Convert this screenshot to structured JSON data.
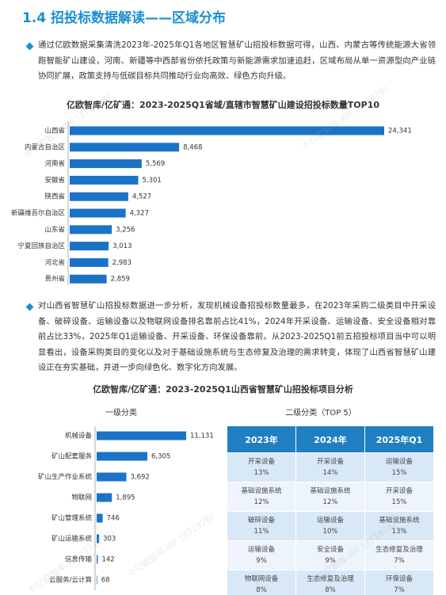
{
  "header": {
    "title": "1.4 招投标数据解读——区域分布"
  },
  "paragraphs": [
    "通过亿欧数据采集清洗2023年-2025年Q1各地区智慧矿山招投标数据可得，山西、内蒙古等传统能源大省领跑智能矿山建设，河南、新疆等中西部省份依托政策与新能源需求加速追赶，区域布局从单一资源型向产业链协同扩展，政策支持与低碳目标共同推动行业向高效、绿色方向升级。",
    "对山西省智慧矿山招投标数据进一步分析，发现机械设备招投标数量最多，在2023年采购二级类目中开采设备、破碎设备、运输设备以及物联网设备排名靠前占比41%，2024年开采设备、运输设备、安全设备相对靠前占比33%，2025年Q1运输设备、开采设备、环保设备靠前。从2023-2025Q1前五招投标项目当中可以明显看出，设备采购类目的变化以及对于基础设施系统与生态修复及治理的需求转变，体现了山西省智慧矿山建设正在夯实基础，并进一步向绿色化、数字化方向发展。"
  ],
  "watermark": "©亿欧智库-WF (371928)",
  "region_chart": {
    "title": "亿欧智库/亿矿通：2023-2025Q1省域/直辖市智慧矿山建设招投标数量TOP10",
    "categories": [
      "山西省",
      "内蒙古自治区",
      "河南省",
      "安徽省",
      "陕西省",
      "新疆维吾尔自治区",
      "山东省",
      "宁夏回族自治区",
      "河北省",
      "贵州省"
    ],
    "values": [
      24341,
      8468,
      5569,
      5301,
      4527,
      4327,
      3256,
      3013,
      2983,
      2859
    ],
    "value_labels": [
      "24,341",
      "8,468",
      "5,569",
      "5,301",
      "4,527",
      "4,327",
      "3,256",
      "3,013",
      "2,983",
      "2,859"
    ],
    "color": "#1a73c6"
  },
  "analysis": {
    "title": "亿欧智库/亿矿通：2023-2025Q1山西省智慧矿山招投标项目分析",
    "primary": {
      "title": "一级分类",
      "categories": [
        "机械设备",
        "矿山配套服务",
        "矿山生产作业系统",
        "物联网",
        "矿山管理系统",
        "矿山运输系统",
        "信息传输",
        "云服务/云计算"
      ],
      "values": [
        11131,
        6305,
        3692,
        1895,
        746,
        303,
        142,
        68
      ],
      "value_labels": [
        "11,131",
        "6,305",
        "3,692",
        "1,895",
        "746",
        "303",
        "142",
        "68"
      ],
      "color": "#1a73c6"
    },
    "secondary": {
      "title": "二级分类（TOP 5）",
      "columns": [
        "2023年",
        "2024年",
        "2025年Q1"
      ],
      "rows": [
        [
          [
            "开采设备",
            "13%"
          ],
          [
            "开采设备",
            "14%"
          ],
          [
            "运输设备",
            "15%"
          ]
        ],
        [
          [
            "基础设施系统",
            "12%"
          ],
          [
            "基础设施系统",
            "12%"
          ],
          [
            "开采设备",
            "15%"
          ]
        ],
        [
          [
            "破碎设备",
            "11%"
          ],
          [
            "运输设备",
            "10%"
          ],
          [
            "基础设施系统",
            "13%"
          ]
        ],
        [
          [
            "运输设备",
            "9%"
          ],
          [
            "安全设备",
            "9%"
          ],
          [
            "生态修复及治理",
            "7%"
          ]
        ],
        [
          [
            "物联网设备",
            "8%"
          ],
          [
            "生态修复及治理",
            "8%"
          ],
          [
            "环保设备",
            "7%"
          ]
        ]
      ]
    }
  }
}
